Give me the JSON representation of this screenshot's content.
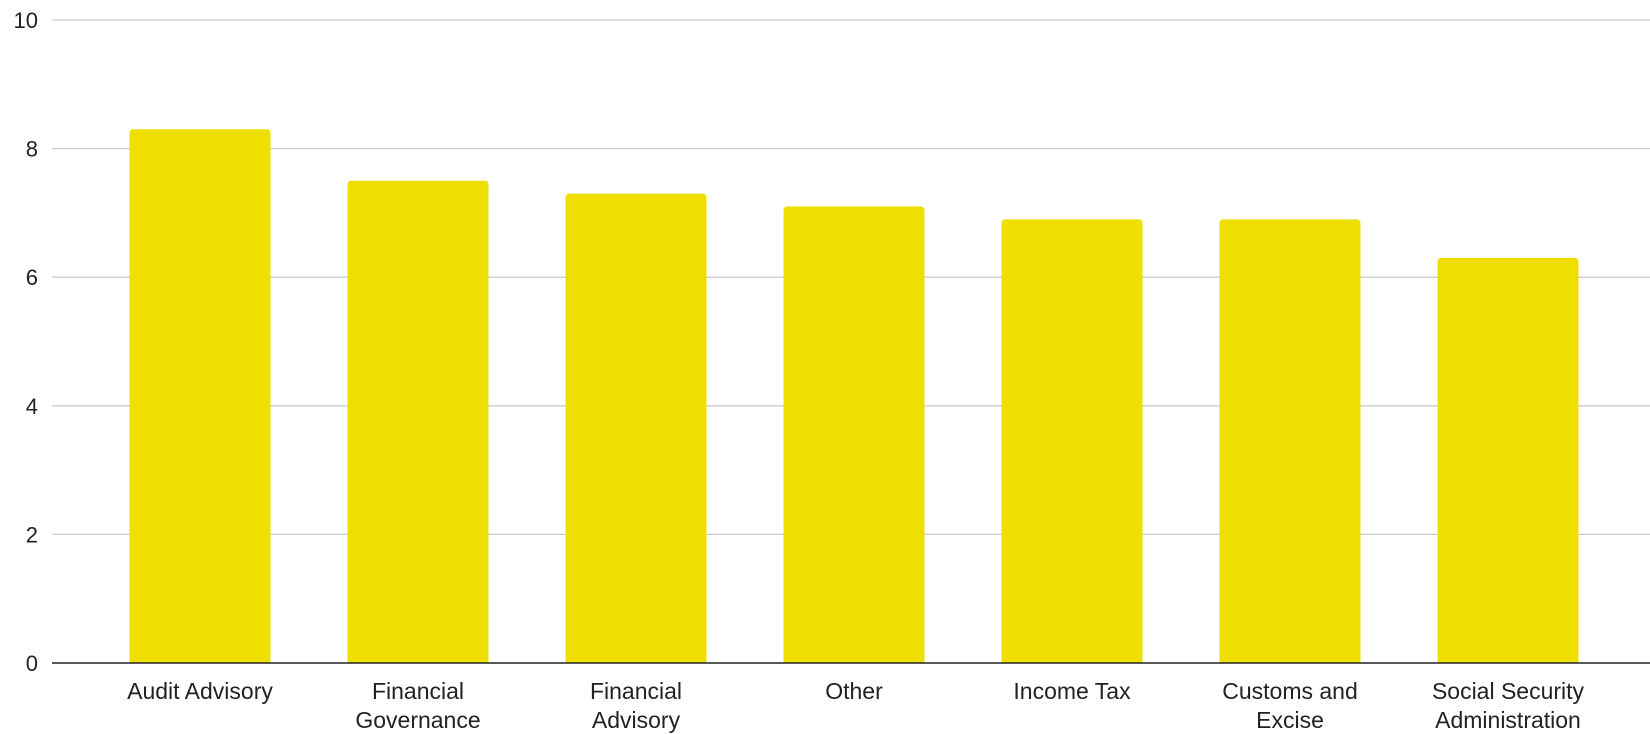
{
  "chart_data": {
    "type": "bar",
    "categories": [
      "Audit Advisory",
      "Financial Governance",
      "Financial Advisory",
      "Other",
      "Income Tax",
      "Customs and Excise",
      "Social Security Administration"
    ],
    "category_label_lines": [
      [
        "Audit Advisory"
      ],
      [
        "Financial",
        "Governance"
      ],
      [
        "Financial",
        "Advisory"
      ],
      [
        "Other"
      ],
      [
        "Income Tax"
      ],
      [
        "Customs and",
        "Excise"
      ],
      [
        "Social Security",
        "Administration"
      ]
    ],
    "series": [
      {
        "values": [
          8.3,
          7.5,
          7.3,
          7.1,
          6.9,
          6.9,
          6.3
        ],
        "color": "#efdf00"
      }
    ],
    "ylim": [
      0,
      10
    ],
    "yticks": [
      0,
      2,
      4,
      6,
      8,
      10
    ],
    "title": "",
    "xlabel": "",
    "ylabel": "",
    "grid": true,
    "legend": "none"
  }
}
